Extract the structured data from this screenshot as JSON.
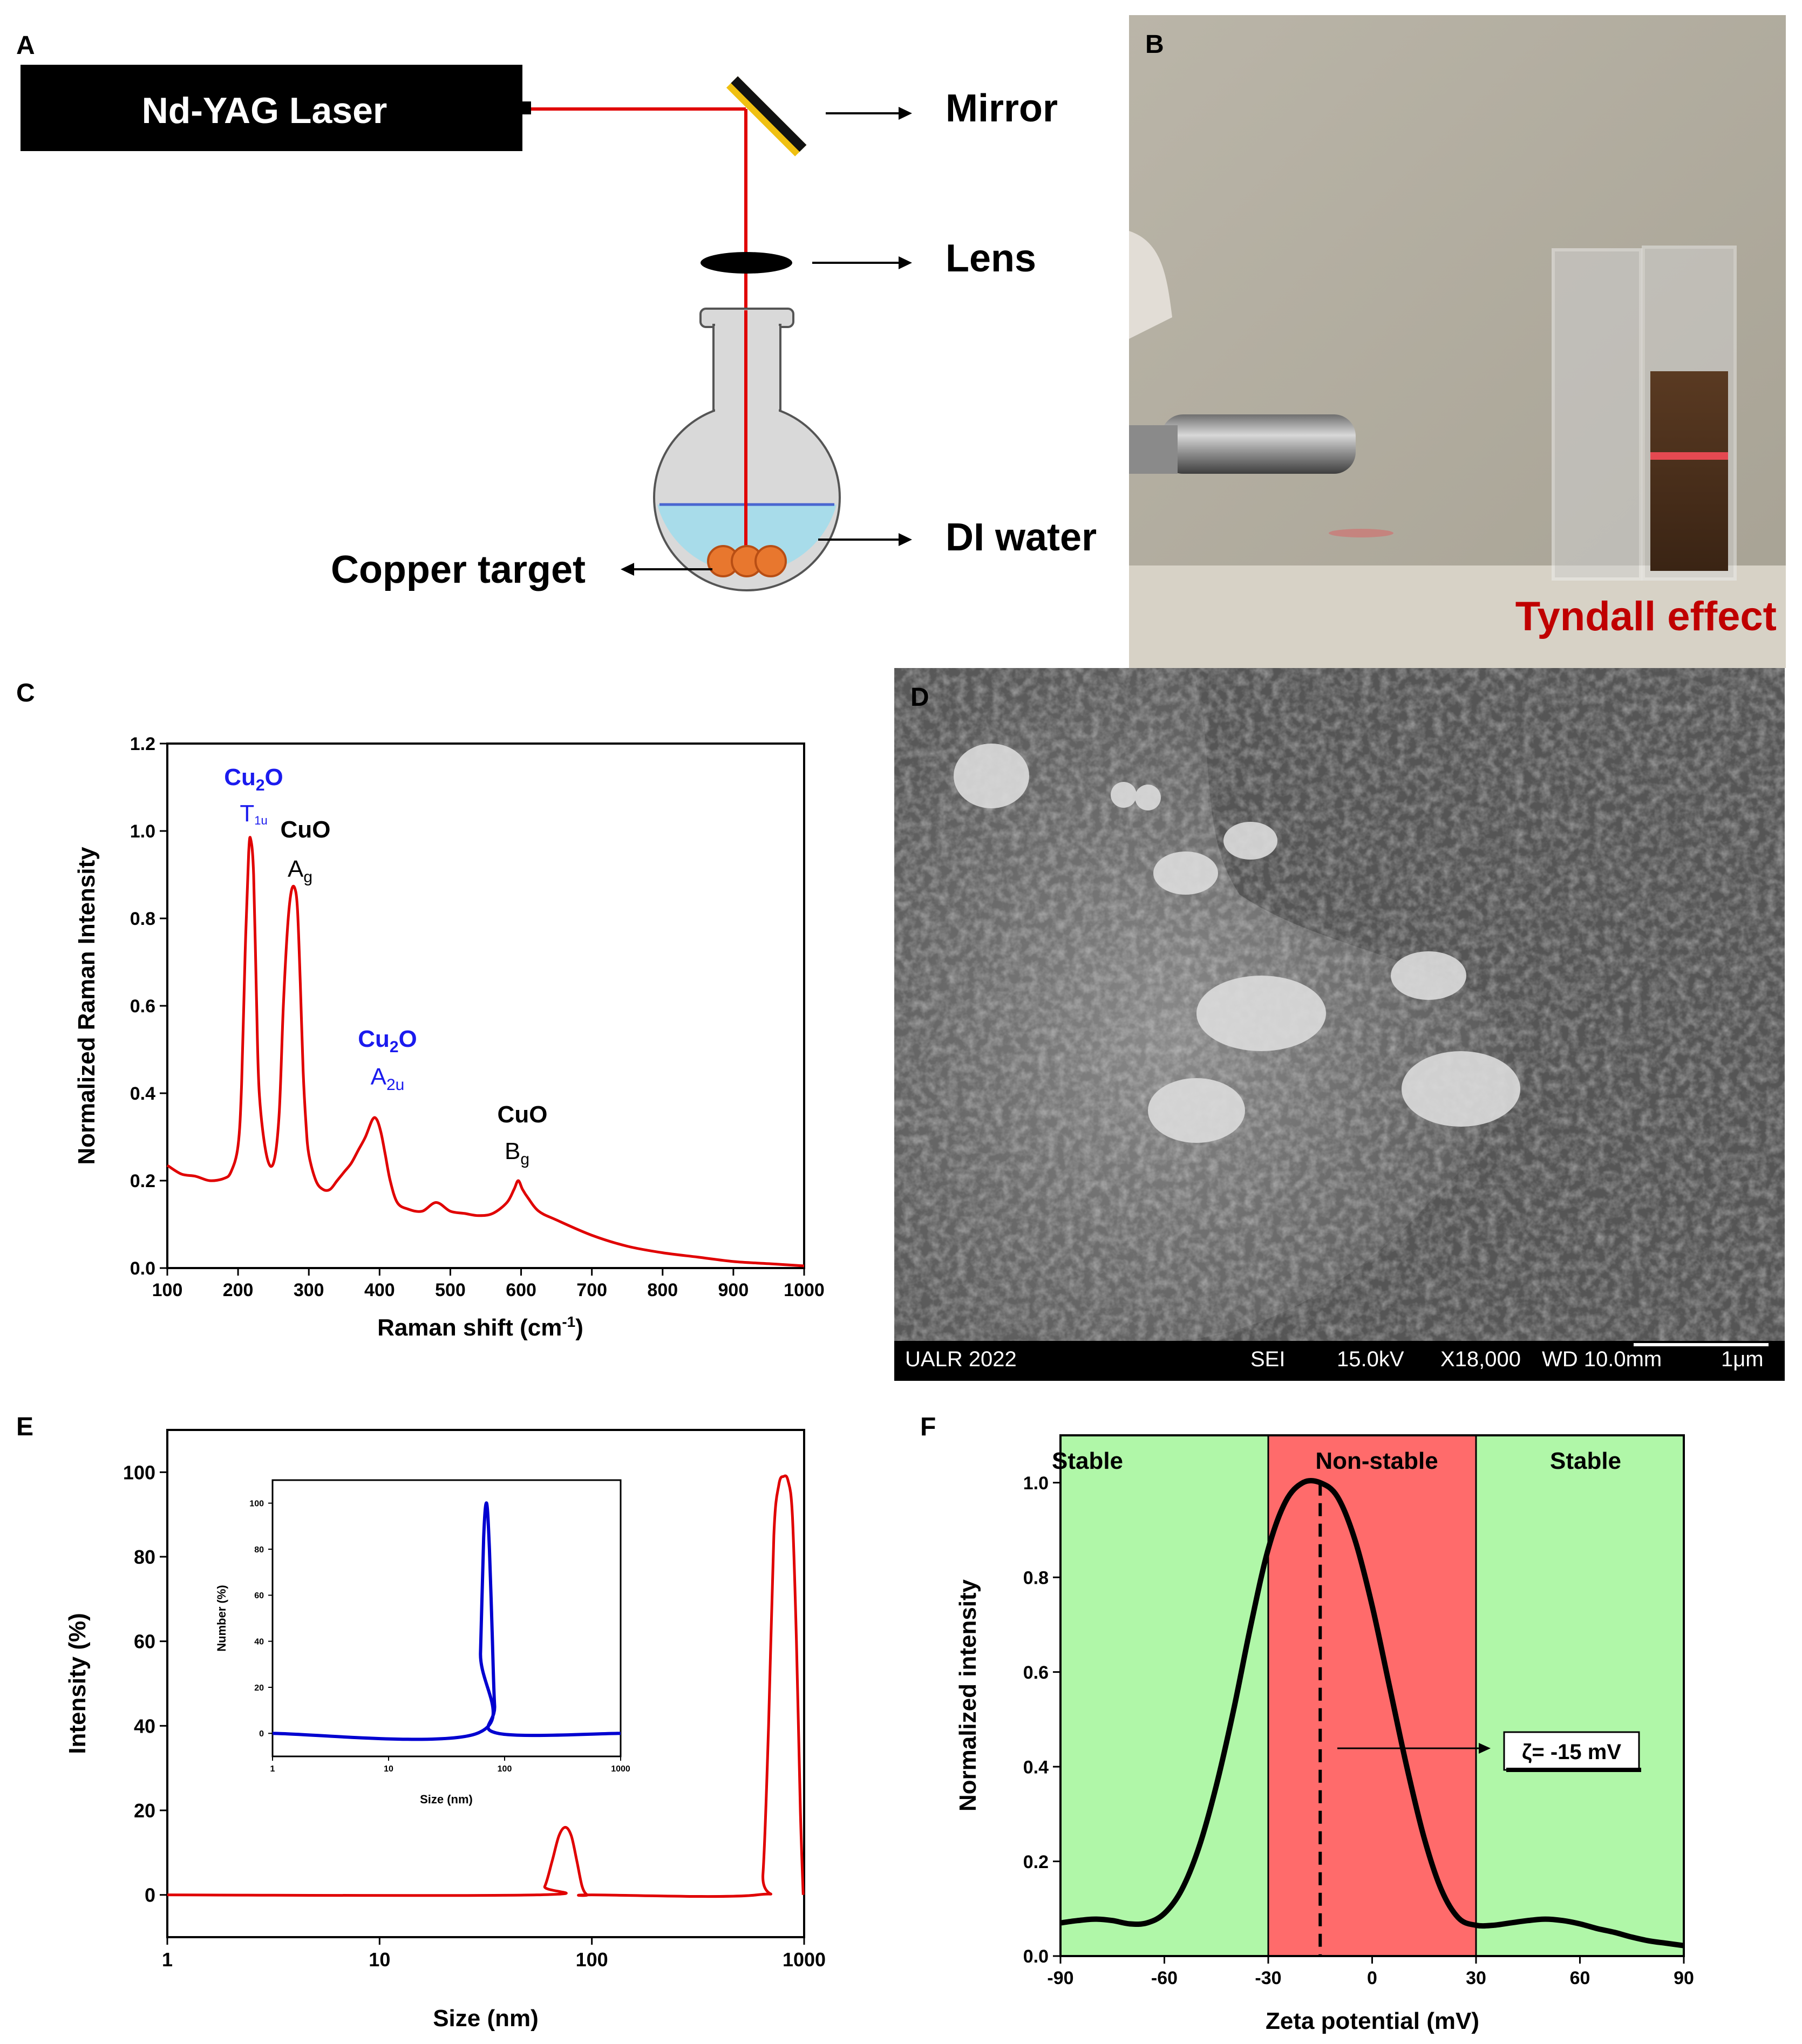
{
  "panel_labels": {
    "a": "A",
    "b": "B",
    "c": "C",
    "d": "D",
    "e": "E",
    "f": "F"
  },
  "panel_a": {
    "laser": "Nd-YAG Laser",
    "mirror": "Mirror",
    "lens": "Lens",
    "water": "DI water",
    "target": "Copper target",
    "colors": {
      "beam": "#e00000",
      "water": "#a8dcea",
      "copper": "#e8772e",
      "mirror_frame": "#f0c010"
    }
  },
  "panel_b": {
    "caption": "Tyndall effect",
    "caption_color": "#c00000"
  },
  "panel_c": {
    "annotations": {
      "cu2o_a": "Cu",
      "cu2o_a_sub": "2",
      "cu2o_a_tail": "O",
      "t1u": "T",
      "t1u_sub": "1u",
      "cuo_a": "CuO",
      "ag": "A",
      "ag_sub": "g",
      "cu2o_b": "Cu",
      "cu2o_b_sub": "2",
      "cu2o_b_tail": "O",
      "a2u": "A",
      "a2u_sub": "2u",
      "cuo_b": "CuO",
      "bg": "B",
      "bg_sub": "g"
    },
    "chart_data": {
      "type": "line",
      "title": "",
      "xlabel": "Raman shift (cm",
      "xlabel_sup": "-1",
      "xlabel_tail": ")",
      "ylabel": "Normalized Raman Intensity",
      "xlim": [
        100,
        1000
      ],
      "ylim": [
        0.0,
        1.2
      ],
      "xticks": [
        "100",
        "200",
        "300",
        "400",
        "500",
        "600",
        "700",
        "800",
        "900",
        "1000"
      ],
      "yticks": [
        "0.0",
        "0.2",
        "0.4",
        "0.6",
        "0.8",
        "1.0",
        "1.2"
      ],
      "series": [
        {
          "color": "#e00000",
          "x": [
            100,
            120,
            140,
            160,
            180,
            190,
            200,
            205,
            210,
            215,
            218,
            222,
            226,
            230,
            240,
            250,
            258,
            264,
            270,
            275,
            280,
            284,
            288,
            292,
            296,
            300,
            310,
            320,
            330,
            340,
            350,
            360,
            370,
            380,
            390,
            396,
            402,
            408,
            415,
            425,
            440,
            460,
            480,
            500,
            520,
            540,
            560,
            580,
            590,
            596,
            602,
            610,
            625,
            650,
            700,
            750,
            800,
            850,
            900,
            950,
            1000
          ],
          "y": [
            0.235,
            0.215,
            0.21,
            0.2,
            0.205,
            0.22,
            0.28,
            0.42,
            0.72,
            0.95,
            0.98,
            0.9,
            0.62,
            0.4,
            0.26,
            0.24,
            0.35,
            0.6,
            0.78,
            0.86,
            0.87,
            0.82,
            0.65,
            0.45,
            0.33,
            0.26,
            0.2,
            0.18,
            0.18,
            0.2,
            0.22,
            0.24,
            0.27,
            0.3,
            0.34,
            0.34,
            0.31,
            0.26,
            0.2,
            0.15,
            0.135,
            0.13,
            0.15,
            0.13,
            0.125,
            0.12,
            0.125,
            0.15,
            0.18,
            0.2,
            0.18,
            0.16,
            0.13,
            0.11,
            0.075,
            0.05,
            0.035,
            0.025,
            0.015,
            0.01,
            0.005
          ]
        }
      ]
    }
  },
  "panel_d": {
    "sem_bar": {
      "lab": "UALR 2022",
      "mode": "SEI",
      "kv": "15.0kV",
      "mag": "X18,000",
      "wd": "WD 10.0mm",
      "scale": "1μm"
    }
  },
  "panel_e": {
    "chart_data": {
      "type": "line",
      "title": "",
      "xlabel": "Size (nm)",
      "ylabel": "Intensity (%)",
      "xscale": "log",
      "xlim": [
        1,
        1000
      ],
      "ylim": [
        -10,
        110
      ],
      "xticks": [
        "1",
        "10",
        "100",
        "1000"
      ],
      "yticks": [
        "0",
        "20",
        "40",
        "60",
        "80",
        "100"
      ],
      "series": [
        {
          "color": "#e00000",
          "x": [
            1,
            55,
            60,
            65,
            70,
            75,
            80,
            85,
            90,
            95,
            100,
            600,
            640,
            680,
            720,
            760,
            800,
            840,
            880,
            920,
            960,
            990
          ],
          "y": [
            0,
            0,
            2,
            8,
            14,
            16,
            14,
            8,
            2,
            0,
            0,
            0,
            5,
            40,
            85,
            97,
            99,
            98,
            90,
            60,
            20,
            0
          ]
        }
      ],
      "inset": {
        "xlabel": "Size (nm)",
        "ylabel": "Number (%)",
        "xscale": "log",
        "xlim": [
          1,
          1000
        ],
        "ylim": [
          -10,
          110
        ],
        "xticks": [
          "1",
          "10",
          "100",
          "1000"
        ],
        "yticks": [
          "0",
          "20",
          "40",
          "60",
          "80",
          "100"
        ],
        "series": [
          {
            "color": "#0000d0",
            "x": [
              1,
              58,
              62,
              66,
              70,
              74,
              78,
              82,
              88,
              1000
            ],
            "y": [
              0,
              0,
              35,
              85,
              100,
              80,
              45,
              12,
              0,
              0
            ]
          }
        ]
      }
    }
  },
  "panel_f": {
    "regions": {
      "left": "Stable",
      "middle": "Non-stable",
      "right": "Stable"
    },
    "region_colors": {
      "stable": "#b0f7a8",
      "nonstable": "#ff6b6b"
    },
    "annotation": "ζ= -15 mV",
    "chart_data": {
      "type": "line",
      "title": "",
      "xlabel": "Zeta potential (mV)",
      "ylabel": "Normalized intensity",
      "xlim": [
        -90,
        90
      ],
      "ylim": [
        0.0,
        1.1
      ],
      "xticks": [
        "-90",
        "-60",
        "-30",
        "0",
        "30",
        "60",
        "90"
      ],
      "yticks": [
        "0.0",
        "0.2",
        "0.4",
        "0.6",
        "0.8",
        "1.0"
      ],
      "peak_x": -15,
      "series": [
        {
          "color": "#000000",
          "x": [
            -90,
            -85,
            -80,
            -75,
            -70,
            -65,
            -60,
            -55,
            -50,
            -45,
            -40,
            -35,
            -30,
            -25,
            -20,
            -15,
            -10,
            -5,
            0,
            5,
            10,
            15,
            20,
            25,
            30,
            35,
            40,
            45,
            50,
            55,
            60,
            65,
            70,
            75,
            80,
            85,
            90
          ],
          "y": [
            0.07,
            0.075,
            0.078,
            0.075,
            0.068,
            0.07,
            0.09,
            0.14,
            0.23,
            0.36,
            0.52,
            0.7,
            0.86,
            0.96,
            1.0,
            1.0,
            0.97,
            0.88,
            0.74,
            0.57,
            0.4,
            0.25,
            0.14,
            0.08,
            0.065,
            0.065,
            0.07,
            0.075,
            0.078,
            0.075,
            0.068,
            0.058,
            0.05,
            0.04,
            0.032,
            0.027,
            0.022
          ]
        }
      ]
    }
  }
}
